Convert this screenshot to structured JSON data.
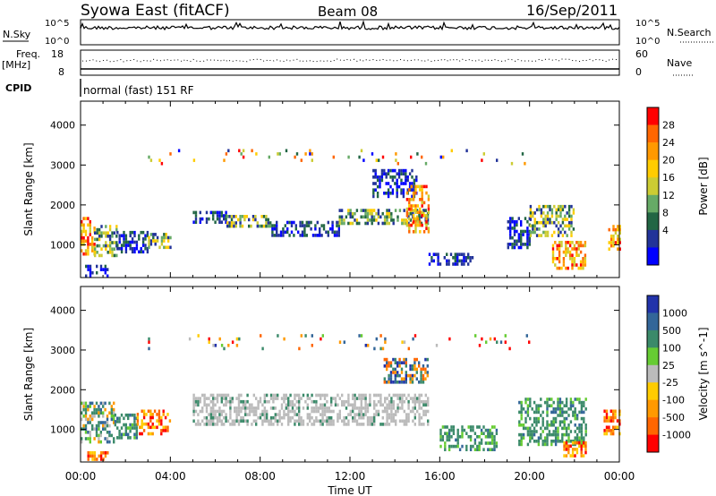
{
  "header": {
    "station": "Syowa East (fitACF)",
    "beam": "Beam 08",
    "date": "16/Sep/2011"
  },
  "side_labels": {
    "nsky": "N.Sky",
    "nsearch": "N.Search",
    "freq": "Freq.",
    "freq_unit": "[MHz]",
    "nave": "Nave",
    "cpid": "CPID"
  },
  "cpid_text": "normal (fast) 151 RF",
  "noise_ticks_left": [
    "10^5",
    "10^0"
  ],
  "noise_ticks_right": [
    "10^5",
    "10^0"
  ],
  "freq_ticks": [
    "18",
    "8"
  ],
  "nave_ticks": [
    "60",
    "0"
  ],
  "colors": {
    "frame": "#000000",
    "noise_trace": "#000000"
  },
  "chart_data": [
    {
      "type": "heatmap",
      "name": "power",
      "xlabel": "",
      "ylabel": "Slant Range [km]",
      "x_range_hours": [
        0,
        24
      ],
      "ylim_km": [
        180,
        4600
      ],
      "x_tick_labels": [
        "00:00",
        "04:00",
        "08:00",
        "12:00",
        "16:00",
        "20:00",
        "00:00"
      ],
      "y_ticks": [
        1000,
        2000,
        3000,
        4000
      ],
      "colorbar": {
        "label": "Power [dB]",
        "ticks": [
          "28",
          "24",
          "20",
          "16",
          "12",
          "8",
          "4"
        ],
        "colors": [
          "#ff0000",
          "#ff6600",
          "#ff9900",
          "#ffcc00",
          "#cccc33",
          "#66aa66",
          "#226644",
          "#223399",
          "#0000ff"
        ]
      },
      "regions": [
        {
          "t": [
            0.0,
            0.6
          ],
          "r": [
            800,
            1700
          ],
          "level": "high"
        },
        {
          "t": [
            0.6,
            1.6
          ],
          "r": [
            700,
            1500
          ],
          "level": "mid"
        },
        {
          "t": [
            1.6,
            3.0
          ],
          "r": [
            850,
            1350
          ],
          "level": "low"
        },
        {
          "t": [
            3.0,
            4.0
          ],
          "r": [
            900,
            1300
          ],
          "level": "mid"
        },
        {
          "t": [
            0.2,
            1.2
          ],
          "r": [
            250,
            500
          ],
          "level": "low"
        },
        {
          "t": [
            5.0,
            6.5
          ],
          "r": [
            1600,
            1850
          ],
          "level": "low"
        },
        {
          "t": [
            6.5,
            8.5
          ],
          "r": [
            1450,
            1750
          ],
          "level": "mid"
        },
        {
          "t": [
            8.5,
            11.5
          ],
          "r": [
            1200,
            1600
          ],
          "level": "low"
        },
        {
          "t": [
            11.5,
            15.5
          ],
          "r": [
            1500,
            1900
          ],
          "level": "mid"
        },
        {
          "t": [
            13.0,
            15.0
          ],
          "r": [
            2200,
            2900
          ],
          "level": "low"
        },
        {
          "t": [
            14.5,
            15.5
          ],
          "r": [
            1300,
            2500
          ],
          "level": "high"
        },
        {
          "t": [
            15.5,
            17.5
          ],
          "r": [
            500,
            800
          ],
          "level": "low"
        },
        {
          "t": [
            19.0,
            20.0
          ],
          "r": [
            900,
            1700
          ],
          "level": "low"
        },
        {
          "t": [
            20.0,
            22.0
          ],
          "r": [
            1200,
            2000
          ],
          "level": "mid"
        },
        {
          "t": [
            21.0,
            22.5
          ],
          "r": [
            400,
            1100
          ],
          "level": "high"
        },
        {
          "t": [
            23.5,
            24.0
          ],
          "r": [
            900,
            1500
          ],
          "level": "high"
        },
        {
          "t": [
            3.0,
            20.0
          ],
          "r": [
            3000,
            3400
          ],
          "level": "sparse"
        }
      ]
    },
    {
      "type": "heatmap",
      "name": "velocity",
      "xlabel": "Time UT",
      "ylabel": "Slant Range [km]",
      "x_range_hours": [
        0,
        24
      ],
      "ylim_km": [
        180,
        4600
      ],
      "x_tick_labels": [
        "00:00",
        "04:00",
        "08:00",
        "12:00",
        "16:00",
        "20:00",
        "00:00"
      ],
      "y_ticks": [
        1000,
        2000,
        3000,
        4000
      ],
      "colorbar": {
        "label": "Velocity [m s^-1]",
        "ticks": [
          "1000",
          "500",
          "100",
          "25",
          "-25",
          "-100",
          "-500",
          "-1000"
        ],
        "colors": [
          "#2233aa",
          "#336699",
          "#3b8a6a",
          "#66cc33",
          "#bbbbbb",
          "#ffcc00",
          "#ff9900",
          "#ff6600",
          "#ff0000"
        ]
      },
      "regions": [
        {
          "t": [
            0.0,
            1.5
          ],
          "r": [
            700,
            1700
          ],
          "vel": "mixed-green"
        },
        {
          "t": [
            1.5,
            2.5
          ],
          "r": [
            800,
            1400
          ],
          "vel": "green"
        },
        {
          "t": [
            2.5,
            4.0
          ],
          "r": [
            900,
            1500
          ],
          "vel": "away"
        },
        {
          "t": [
            0.3,
            1.2
          ],
          "r": [
            250,
            450
          ],
          "vel": "away"
        },
        {
          "t": [
            5.0,
            15.5
          ],
          "r": [
            1100,
            1900
          ],
          "vel": "near-zero"
        },
        {
          "t": [
            13.5,
            15.5
          ],
          "r": [
            2200,
            2800
          ],
          "vel": "mixed"
        },
        {
          "t": [
            16.0,
            18.5
          ],
          "r": [
            500,
            1100
          ],
          "vel": "green"
        },
        {
          "t": [
            19.5,
            22.5
          ],
          "r": [
            600,
            1800
          ],
          "vel": "green"
        },
        {
          "t": [
            21.5,
            22.5
          ],
          "r": [
            300,
            700
          ],
          "vel": "away"
        },
        {
          "t": [
            23.3,
            24.0
          ],
          "r": [
            900,
            1500
          ],
          "vel": "away"
        },
        {
          "t": [
            3.0,
            20.0
          ],
          "r": [
            3000,
            3400
          ],
          "vel": "sparse"
        }
      ]
    }
  ]
}
